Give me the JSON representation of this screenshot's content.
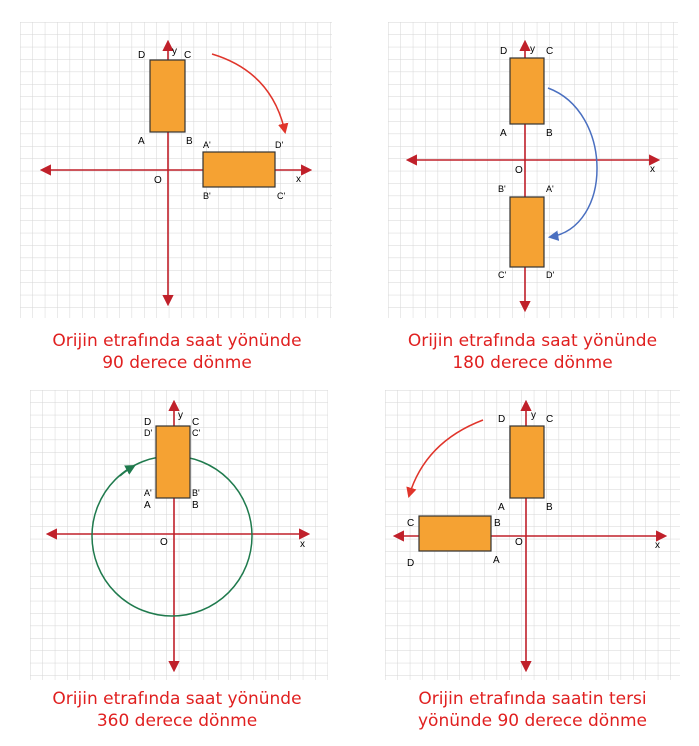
{
  "axes": {
    "x_label": "x",
    "y_label": "y",
    "origin_label": "O"
  },
  "panels": [
    {
      "caption_line1": "Orijin etrafında saat yönünde",
      "caption_line2": "90 derece dönme",
      "arrow_color": "#e0352b",
      "original_labels": {
        "D": "D",
        "C": "C",
        "A": "A",
        "B": "B"
      },
      "image_labels": {
        "A": "A'",
        "D": "D'",
        "B": "B'",
        "C": "C'"
      }
    },
    {
      "caption_line1": "Orijin etrafında saat yönünde",
      "caption_line2": "180 derece dönme",
      "arrow_color": "#4a6fc0",
      "original_labels": {
        "D": "D",
        "C": "C",
        "A": "A",
        "B": "B"
      },
      "image_labels": {
        "B": "B'",
        "A": "A'",
        "C": "C'",
        "D": "D'"
      }
    },
    {
      "caption_line1": "Orijin etrafında saat yönünde",
      "caption_line2": "360 derece dönme",
      "arrow_color": "#1f7a4d",
      "original_labels": {
        "D": "D",
        "C": "C",
        "A": "A",
        "B": "B"
      },
      "image_labels": {
        "D": "D'",
        "C": "C'",
        "A": "A'",
        "B": "B'"
      }
    },
    {
      "caption_line1": "Orijin etrafında saatin tersi",
      "caption_line2": "yönünde 90 derece dönme",
      "arrow_color": "#e0352b",
      "original_labels": {
        "D": "D",
        "C": "C",
        "A": "A",
        "B": "B"
      },
      "image_labels": {
        "C": "C",
        "B": "B",
        "D": "D",
        "A": "A"
      }
    }
  ],
  "colors": {
    "rectangle_fill": "#f5a233",
    "axis": "#c0202a",
    "grid": "#d6d6d6",
    "caption": "#e02020"
  }
}
